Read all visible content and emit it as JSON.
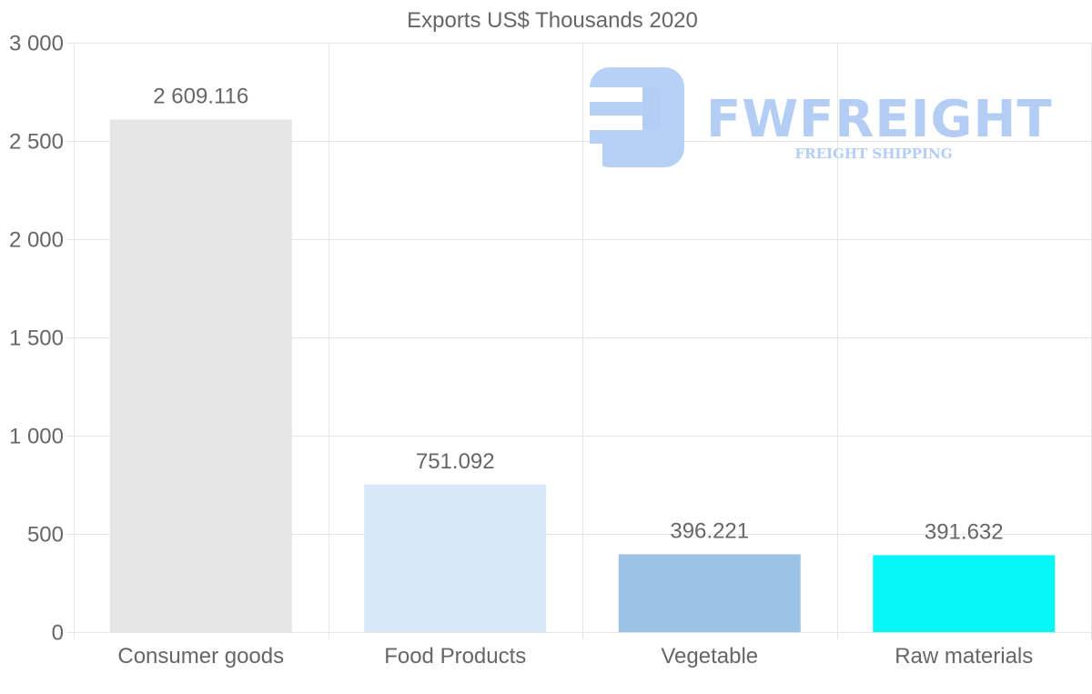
{
  "chart_data": {
    "type": "bar",
    "title": "Exports US$ Thousands 2020",
    "categories": [
      "Consumer goods",
      "Food Products",
      "Vegetable",
      "Raw materials"
    ],
    "values": [
      2609.116,
      751.092,
      396.221,
      391.632
    ],
    "value_labels": [
      "2 609.116",
      "751.092",
      "396.221",
      "391.632"
    ],
    "colors": [
      "#e6e6e6",
      "#d7e8f9",
      "#9cc3e6",
      "#05f7f7"
    ],
    "ylim": [
      0,
      3000
    ],
    "yticks": [
      0,
      500,
      1000,
      1500,
      2000,
      2500,
      3000
    ],
    "ytick_labels": [
      "0",
      "500",
      "1 000",
      "1 500",
      "2 000",
      "2 500",
      "3 000"
    ],
    "grid": true,
    "xlabel": "",
    "ylabel": ""
  },
  "watermark": {
    "brand": "FWFREIGHT",
    "tagline": "FREIGHT SHIPPING",
    "color": "#b3cdf4"
  }
}
